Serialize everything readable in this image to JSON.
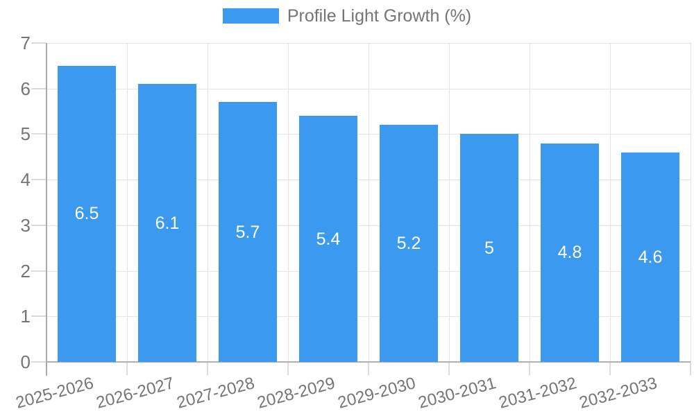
{
  "legend": {
    "label": "Profile Light Growth (%)"
  },
  "chart_data": {
    "type": "bar",
    "title": "Profile Light Growth (%)",
    "categories": [
      "2025-2026",
      "2026-2027",
      "2027-2028",
      "2028-2029",
      "2029-2030",
      "2030-2031",
      "2031-2032",
      "2032-2033"
    ],
    "series": [
      {
        "name": "Profile Light Growth (%)",
        "values": [
          6.5,
          6.1,
          5.7,
          5.4,
          5.2,
          5,
          4.8,
          4.6
        ]
      }
    ],
    "value_labels": [
      "6.5",
      "6.1",
      "5.7",
      "5.4",
      "5.2",
      "5",
      "4.8",
      "4.6"
    ],
    "xlabel": "",
    "ylabel": "",
    "ylim": [
      0,
      7
    ],
    "yticks": [
      0,
      1,
      2,
      3,
      4,
      5,
      6,
      7
    ],
    "grid": true,
    "legend_position": "top",
    "x_label_rotation_deg": -15,
    "bar_color": "#3b9af0",
    "value_label_color": "#ffffff",
    "axis_text_color": "#757575"
  }
}
